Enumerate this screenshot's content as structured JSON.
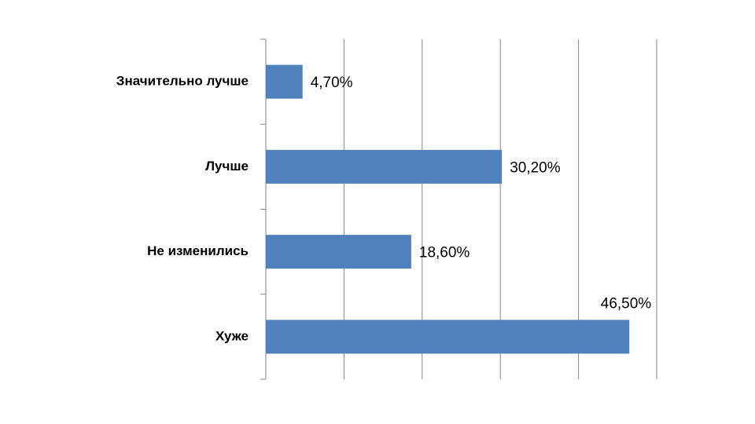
{
  "chart_data": {
    "type": "bar",
    "orientation": "horizontal",
    "categories": [
      "Значительно лучше",
      "Лучше",
      "Не изменились",
      "Хуже"
    ],
    "values": [
      4.7,
      30.2,
      18.6,
      46.5
    ],
    "value_labels": [
      "4,70%",
      "30,20%",
      "18,60%",
      "46,50%"
    ],
    "color": "#4f81bd",
    "xlim": [
      0,
      50
    ],
    "xticks": [
      0,
      10,
      20,
      30,
      40,
      50
    ],
    "grid": true
  }
}
